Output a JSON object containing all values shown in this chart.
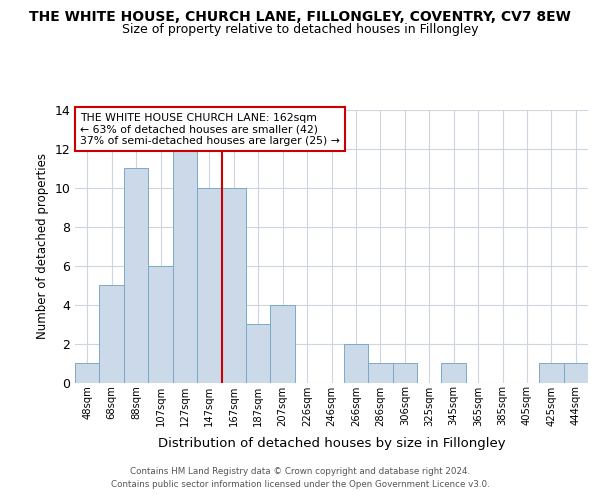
{
  "title1": "THE WHITE HOUSE, CHURCH LANE, FILLONGLEY, COVENTRY, CV7 8EW",
  "title2": "Size of property relative to detached houses in Fillongley",
  "xlabel": "Distribution of detached houses by size in Fillongley",
  "ylabel": "Number of detached properties",
  "bins": [
    "48sqm",
    "68sqm",
    "88sqm",
    "107sqm",
    "127sqm",
    "147sqm",
    "167sqm",
    "187sqm",
    "207sqm",
    "226sqm",
    "246sqm",
    "266sqm",
    "286sqm",
    "306sqm",
    "325sqm",
    "345sqm",
    "365sqm",
    "385sqm",
    "405sqm",
    "425sqm",
    "444sqm"
  ],
  "counts": [
    1,
    5,
    11,
    6,
    12,
    10,
    10,
    3,
    4,
    0,
    0,
    2,
    1,
    1,
    0,
    1,
    0,
    0,
    0,
    1,
    1
  ],
  "property_bin_index": 6,
  "bar_color": "#ccd9e8",
  "bar_edge_color": "#7aaac8",
  "red_line_color": "#cc0000",
  "annotation_text": "THE WHITE HOUSE CHURCH LANE: 162sqm\n← 63% of detached houses are smaller (42)\n37% of semi-detached houses are larger (25) →",
  "annotation_box_color": "#ffffff",
  "annotation_box_edge": "#cc0000",
  "ylim": [
    0,
    14
  ],
  "yticks": [
    0,
    2,
    4,
    6,
    8,
    10,
    12,
    14
  ],
  "footer1": "Contains HM Land Registry data © Crown copyright and database right 2024.",
  "footer2": "Contains public sector information licensed under the Open Government Licence v3.0.",
  "title_fontsize": 10,
  "subtitle_fontsize": 9,
  "background_color": "#ffffff",
  "grid_color": "#ccd5e0"
}
